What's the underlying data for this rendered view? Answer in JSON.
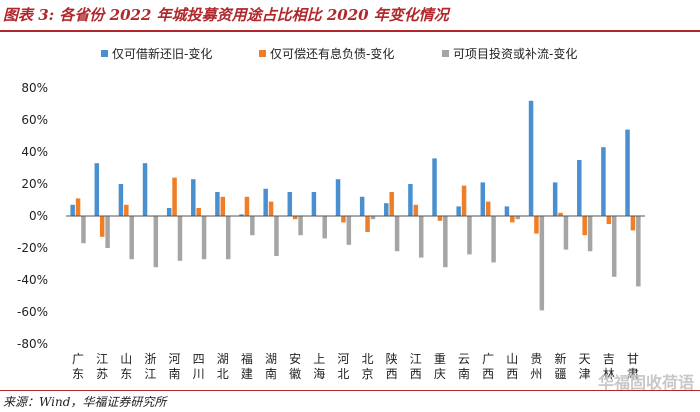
{
  "header": {
    "title": "图表 3: 各省份 2022 年城投募资用途占比相比 2020 年变化情况"
  },
  "footer": {
    "source": "来源：Wind，华福证券研究所",
    "watermark": "华福固收荷语"
  },
  "colors": {
    "series": [
      "#4a90d0",
      "#f07e26",
      "#a5a5a5"
    ],
    "accent": "#b0282c"
  },
  "chart_data": {
    "type": "bar",
    "title": "",
    "xlabel": "",
    "ylabel": "",
    "ylim": [
      -80,
      80
    ],
    "yticks": [
      "80%",
      "60%",
      "40%",
      "20%",
      "0%",
      "-20%",
      "-40%",
      "-60%",
      "-80%"
    ],
    "legend_position": "top",
    "grid": false,
    "categories": [
      "广东",
      "江苏",
      "山东",
      "浙江",
      "河南",
      "四川",
      "湖北",
      "福建",
      "湖南",
      "安徽",
      "上海",
      "河北",
      "北京",
      "陕西",
      "江西",
      "重庆",
      "云南",
      "广西",
      "山西",
      "贵州",
      "新疆",
      "天津",
      "吉林",
      "甘肃"
    ],
    "series": [
      {
        "name": "仅可借新还旧-变化",
        "values": [
          7,
          33,
          20,
          33,
          5,
          23,
          15,
          1,
          17,
          15,
          15,
          23,
          12,
          8,
          20,
          36,
          6,
          21,
          6,
          72,
          21,
          35,
          43,
          54
        ]
      },
      {
        "name": "仅可偿还有息负债-变化",
        "values": [
          11,
          -13,
          7,
          0,
          24,
          5,
          12,
          12,
          9,
          -2,
          0,
          -4,
          -10,
          15,
          7,
          -3,
          19,
          9,
          -4,
          -11,
          2,
          -12,
          -5,
          -9
        ]
      },
      {
        "name": "可项目投资或补流-变化",
        "values": [
          -17,
          -20,
          -27,
          -32,
          -28,
          -27,
          -27,
          -12,
          -25,
          -12,
          -14,
          -18,
          -2,
          -22,
          -26,
          -32,
          -24,
          -29,
          -2,
          -59,
          -21,
          -22,
          -38,
          -44
        ]
      }
    ]
  }
}
